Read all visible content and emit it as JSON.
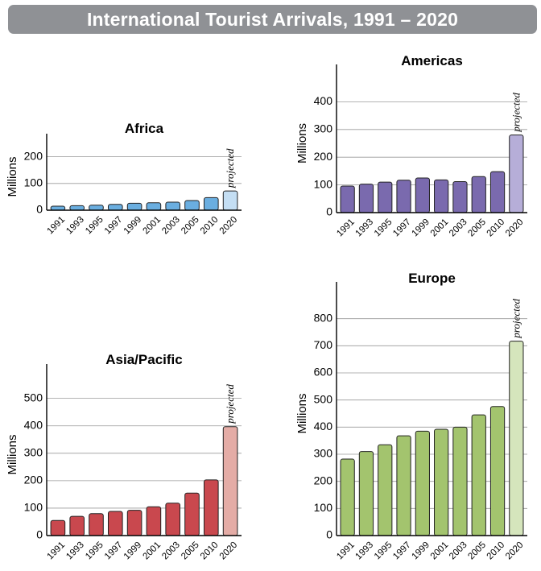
{
  "header": {
    "title": "International Tourist Arrivals, 1991 – 2020"
  },
  "chart_data": [
    {
      "id": "africa",
      "type": "bar",
      "title": "Africa",
      "ylabel": "Millions",
      "ylim": [
        0,
        250
      ],
      "yticks": [
        0,
        100,
        200
      ],
      "categories": [
        "1991",
        "1993",
        "1995",
        "1997",
        "1999",
        "2001",
        "2003",
        "2005",
        "2010",
        "2020"
      ],
      "values": [
        15,
        17,
        19,
        22,
        26,
        28,
        30,
        36,
        47,
        72
      ],
      "annotation": "projected",
      "annotated_category": "2020",
      "colors": {
        "bar": "#6aaee0",
        "projected": "#c4def3"
      },
      "grid": true
    },
    {
      "id": "americas",
      "type": "bar",
      "title": "Americas",
      "ylabel": "Millions",
      "ylim": [
        0,
        500
      ],
      "yticks": [
        0,
        100,
        200,
        300,
        400
      ],
      "categories": [
        "1991",
        "1993",
        "1995",
        "1997",
        "1999",
        "2001",
        "2003",
        "2005",
        "2010",
        "2020"
      ],
      "values": [
        96,
        103,
        110,
        117,
        125,
        118,
        112,
        130,
        148,
        280
      ],
      "annotation": "projected",
      "annotated_category": "2020",
      "colors": {
        "bar": "#7a6aae",
        "projected": "#b6aed8"
      },
      "grid": true
    },
    {
      "id": "asia-pacific",
      "type": "bar",
      "title": "Asia/Pacific",
      "ylabel": "Millions",
      "ylim": [
        0,
        590
      ],
      "yticks": [
        0,
        100,
        200,
        300,
        400,
        500
      ],
      "categories": [
        "1991",
        "1993",
        "1995",
        "1997",
        "1999",
        "2001",
        "2003",
        "2005",
        "2010",
        "2020"
      ],
      "values": [
        55,
        70,
        80,
        88,
        92,
        105,
        118,
        155,
        203,
        397
      ],
      "annotation": "projected",
      "annotated_category": "2020",
      "colors": {
        "bar": "#c9484e",
        "projected": "#e4aca6"
      },
      "grid": true
    },
    {
      "id": "europe",
      "type": "bar",
      "title": "Europe",
      "ylabel": "Millions",
      "ylim": [
        0,
        900
      ],
      "yticks": [
        0,
        100,
        200,
        300,
        400,
        500,
        600,
        700,
        800
      ],
      "categories": [
        "1991",
        "1993",
        "1995",
        "1997",
        "1999",
        "2001",
        "2003",
        "2005",
        "2010",
        "2020"
      ],
      "values": [
        282,
        310,
        335,
        368,
        385,
        392,
        400,
        445,
        476,
        717
      ],
      "annotation": "projected",
      "annotated_category": "2020",
      "colors": {
        "bar": "#a3c46e",
        "projected": "#d5e5bc"
      },
      "grid": true
    }
  ]
}
